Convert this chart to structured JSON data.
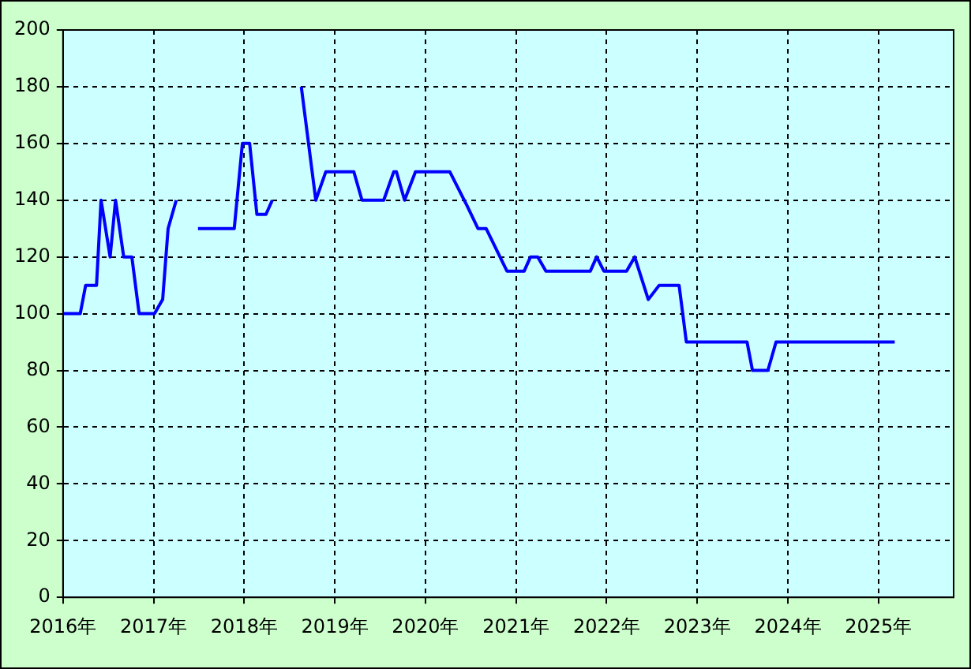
{
  "chart_data": {
    "type": "line",
    "x": [
      2016.0,
      2016.19,
      2016.25,
      2016.37,
      2016.42,
      2016.52,
      2016.58,
      2016.67,
      2016.76,
      2016.84,
      2017.01,
      2017.1,
      2017.16,
      2017.25,
      2017.37,
      2017.49,
      2017.89,
      2017.98,
      2018.06,
      2018.14,
      2018.24,
      2018.31,
      2018.47,
      2018.63,
      2018.79,
      2018.9,
      2019.21,
      2019.3,
      2019.54,
      2019.65,
      2019.68,
      2019.77,
      2019.89,
      2020.27,
      2020.46,
      2020.58,
      2020.67,
      2020.9,
      2021.09,
      2021.16,
      2021.24,
      2021.33,
      2021.82,
      2021.89,
      2021.97,
      2022.22,
      2022.31,
      2022.46,
      2022.58,
      2022.8,
      2022.88,
      2023.55,
      2023.61,
      2023.78,
      2023.87,
      2025.18
    ],
    "series": [
      {
        "color": "#0000ff",
        "values": [
          100,
          100,
          110,
          110,
          140,
          120,
          140,
          120,
          120,
          100,
          100,
          105,
          130,
          140,
          null,
          130,
          130,
          160,
          160,
          135,
          135,
          140,
          null,
          180,
          140,
          150,
          150,
          140,
          140,
          150,
          150,
          140,
          150,
          150,
          138,
          130,
          130,
          115,
          115,
          120,
          120,
          115,
          115,
          120,
          115,
          115,
          120,
          105,
          110,
          110,
          90,
          90,
          80,
          80,
          90,
          90
        ]
      }
    ],
    "xlim": [
      2016,
      2025.83
    ],
    "xticks": [
      {
        "value": 2016,
        "label": "2016年"
      },
      {
        "value": 2017,
        "label": "2017年"
      },
      {
        "value": 2018,
        "label": "2018年"
      },
      {
        "value": 2019,
        "label": "2019年"
      },
      {
        "value": 2020,
        "label": "2020年"
      },
      {
        "value": 2021,
        "label": "2021年"
      },
      {
        "value": 2022,
        "label": "2022年"
      },
      {
        "value": 2023,
        "label": "2023年"
      },
      {
        "value": 2024,
        "label": "2024年"
      },
      {
        "value": 2025,
        "label": "2025年"
      }
    ],
    "ylim": [
      0,
      200
    ],
    "yticks": [
      0,
      20,
      40,
      60,
      80,
      100,
      120,
      140,
      160,
      180,
      200
    ],
    "grid": true,
    "legend": false,
    "marker": "none",
    "line_style": "solid"
  }
}
